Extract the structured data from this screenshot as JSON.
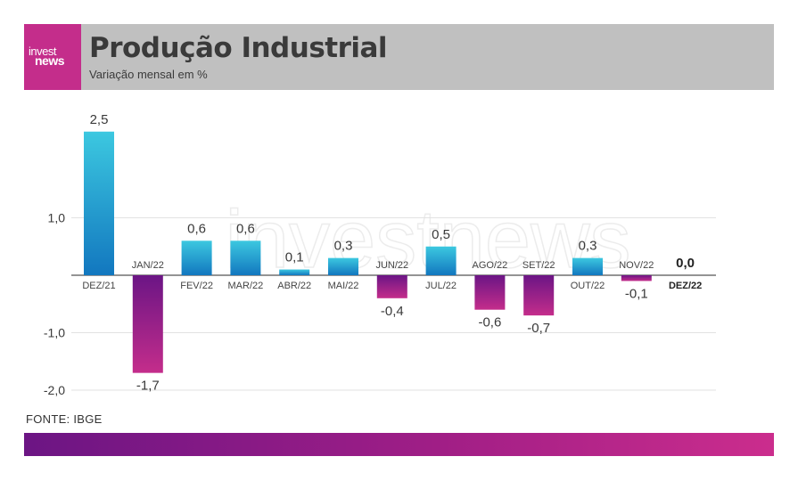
{
  "header": {
    "logo_line1": "invest",
    "logo_line2": "news",
    "title": "Produção Industrial",
    "subtitle": "Variação mensal em %"
  },
  "watermark": "investnews",
  "source": "FONTE: IBGE",
  "colors": {
    "positive_top": "#3cc8e0",
    "positive_bottom": "#1277bf",
    "negative_top": "#6b1585",
    "negative_bottom": "#c42d8b",
    "header_bg": "#c0c0c0",
    "logo_bg": "#c42d8b",
    "text": "#3a3a3a"
  },
  "chart_data": {
    "type": "bar",
    "title": "Produção Industrial",
    "subtitle": "Variação mensal em %",
    "categories": [
      "DEZ/21",
      "JAN/22",
      "FEV/22",
      "MAR/22",
      "ABR/22",
      "MAI/22",
      "JUN/22",
      "JUL/22",
      "AGO/22",
      "SET/22",
      "OUT/22",
      "NOV/22",
      "DEZ/22"
    ],
    "values": [
      2.5,
      -1.7,
      0.6,
      0.6,
      0.1,
      0.3,
      -0.4,
      0.5,
      -0.6,
      -0.7,
      0.3,
      -0.1,
      0.0
    ],
    "value_labels": [
      "2,5",
      "-1,7",
      "0,6",
      "0,6",
      "0,1",
      "0,3",
      "-0,4",
      "0,5",
      "-0,6",
      "-0,7",
      "0,3",
      "-0,1",
      "0,0"
    ],
    "highlight_index": 12,
    "y_ticks": [
      1.0,
      -1.0,
      -2.0
    ],
    "y_tick_labels": [
      "1,0",
      "-1,0",
      "-2,0"
    ],
    "ylim": [
      -2.0,
      2.5
    ],
    "grid": true,
    "legend": "none"
  }
}
